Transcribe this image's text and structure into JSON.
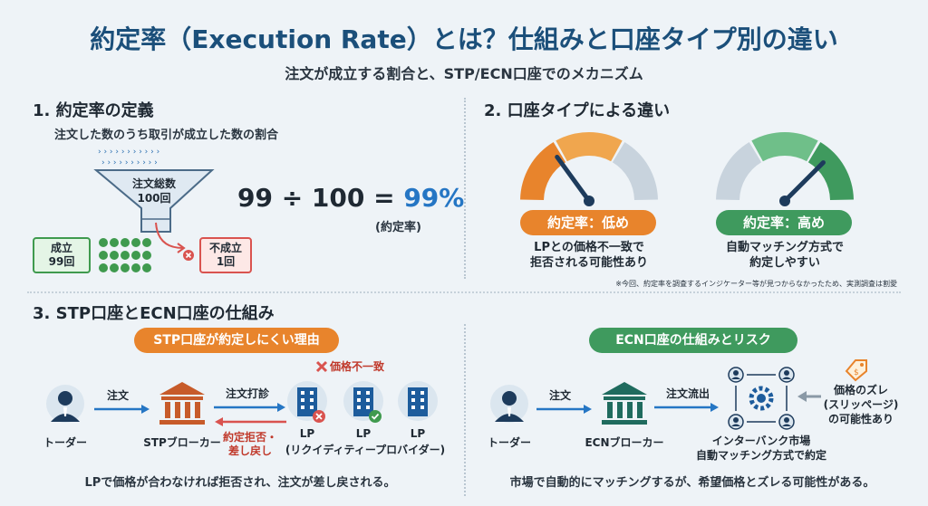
{
  "header": {
    "title": "約定率（Execution Rate）とは？仕組みと口座タイプ別の違い",
    "subtitle": "注文が成立する割合と、STP/ECN口座でのメカニズム"
  },
  "section1": {
    "heading": "1. 約定率の定義",
    "description": "注文した数のうち取引が成立した数の割合",
    "funnel_label_line1": "注文総数",
    "funnel_label_line2": "100回",
    "success_line1": "成立",
    "success_line2": "99回",
    "fail_line1": "不成立",
    "fail_line2": "1回",
    "formula_left": "99 ÷ 100 =",
    "formula_result": "99%",
    "formula_note": "(約定率)"
  },
  "section2": {
    "heading": "2. 口座タイプによる違い",
    "gauge_low": {
      "label": "約定率：低め",
      "desc_line1": "LPとの価格不一致で",
      "desc_line2": "拒否される可能性あり",
      "level": 0.3,
      "color": "#e8842c"
    },
    "gauge_high": {
      "label": "約定率：高め",
      "desc_line1": "自動マッチング方式で",
      "desc_line2": "約定しやすい",
      "level": 0.75,
      "color": "#3f9a5e"
    },
    "footnote": "※今回、約定率を調査するインジケーター等が見つからなかったため、実測調査は割愛"
  },
  "section3": {
    "heading": "3. STP口座とECN口座の仕組み",
    "stp": {
      "title": "STP口座が約定しにくい理由",
      "trader": "トーダー",
      "order": "注文",
      "broker": "STPブローカー",
      "order_hit": "注文打診",
      "reject_line1": "約定拒否・",
      "reject_line2": "差し戻し",
      "price_mismatch": "価格不一致",
      "lp1": "LP",
      "lp2": "LP",
      "lp3": "LP",
      "lp_full": "(リクイディティープロバイダー)",
      "summary": "LPで価格が合わなければ拒否され、注文が差し戻される。"
    },
    "ecn": {
      "title": "ECN口座の仕組みとリスク",
      "trader": "トーダー",
      "order": "注文",
      "broker": "ECNブローカー",
      "order_flow": "注文流出",
      "market_line1": "インターバンク市場",
      "market_line2": "自動マッチング方式で約定",
      "slip_line1": "価格のズレ",
      "slip_line2": "(スリッページ)",
      "slip_line3": "の可能性あり",
      "summary": "市場で自動的にマッチングするが、希望価格とズレる可能性がある。"
    }
  },
  "colors": {
    "title": "#1b4f7a",
    "accent_blue": "#2576c4",
    "orange": "#e8842c",
    "green": "#3f9a5e",
    "red": "#d9534f",
    "navy": "#1d3b5c"
  }
}
